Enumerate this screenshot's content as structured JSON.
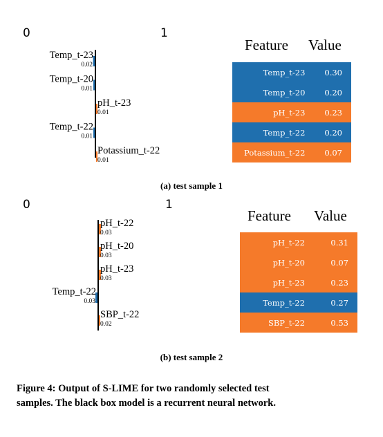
{
  "colors": {
    "blue": "#1f6fae",
    "orange": "#f57a2a",
    "axis": "#000000"
  },
  "chart_data": [
    {
      "type": "bar",
      "class_labels": [
        "0",
        "1"
      ],
      "features": [
        "Temp_t-23",
        "Temp_t-20",
        "pH_t-23",
        "Temp_t-22",
        "Potassium_t-22"
      ],
      "values": [
        "0.02",
        "0.01",
        "0.01",
        "0.01",
        "0.01"
      ],
      "class": [
        0,
        0,
        1,
        0,
        1
      ],
      "table": {
        "headers": [
          "Feature",
          "Value"
        ],
        "rows": [
          {
            "feature": "Temp_t-23",
            "value": "0.30",
            "class": 0
          },
          {
            "feature": "Temp_t-20",
            "value": "0.20",
            "class": 0
          },
          {
            "feature": "pH_t-23",
            "value": "0.23",
            "class": 1
          },
          {
            "feature": "Temp_t-22",
            "value": "0.20",
            "class": 0
          },
          {
            "feature": "Potassium_t-22",
            "value": "0.07",
            "class": 1
          }
        ]
      },
      "caption": "(a) test sample 1"
    },
    {
      "type": "bar",
      "class_labels": [
        "0",
        "1"
      ],
      "features": [
        "pH_t-22",
        "pH_t-20",
        "pH_t-23",
        "Temp_t-22",
        "SBP_t-22"
      ],
      "values": [
        "0.03",
        "0.03",
        "0.03",
        "0.03",
        "0.02"
      ],
      "class": [
        1,
        1,
        1,
        0,
        1
      ],
      "table": {
        "headers": [
          "Feature",
          "Value"
        ],
        "rows": [
          {
            "feature": "pH_t-22",
            "value": "0.31",
            "class": 1
          },
          {
            "feature": "pH_t-20",
            "value": "0.07",
            "class": 1
          },
          {
            "feature": "pH_t-23",
            "value": "0.23",
            "class": 1
          },
          {
            "feature": "Temp_t-22",
            "value": "0.27",
            "class": 0
          },
          {
            "feature": "SBP_t-22",
            "value": "0.53",
            "class": 1
          }
        ]
      },
      "caption": "(b) test sample 2"
    }
  ],
  "figure_caption": {
    "line1": "Figure 4: Output of S-LIME for two randomly selected test",
    "line2": "samples. The black box model is a recurrent neural network."
  }
}
